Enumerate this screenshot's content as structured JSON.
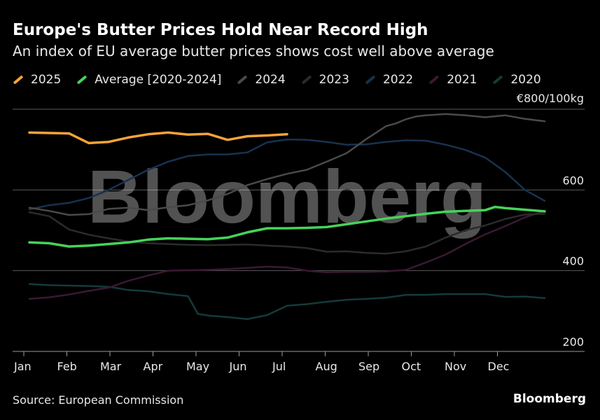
{
  "header": {
    "title": "Europe's Butter Prices Hold Near Record High",
    "subtitle": "An index of EU average butter prices shows cost well above average"
  },
  "legend": [
    {
      "label": "2025",
      "color": "#f7a33a"
    },
    {
      "label": "Average [2020-2024]",
      "color": "#46d35a"
    },
    {
      "label": "2024",
      "color": "#4a4a4a"
    },
    {
      "label": "2023",
      "color": "#2b2b2b"
    },
    {
      "label": "2022",
      "color": "#17324f"
    },
    {
      "label": "2021",
      "color": "#3a1933"
    },
    {
      "label": "2020",
      "color": "#153a3a"
    }
  ],
  "footer": {
    "source": "Source: European Commission",
    "brand": "Bloomberg"
  },
  "watermark": "Bloomberg",
  "chart_data": {
    "type": "line",
    "unit_label": "€800/100kg",
    "x_tick_labels": [
      "Jan",
      "Feb",
      "Mar",
      "Apr",
      "May",
      "Jun",
      "Jul",
      "Aug",
      "Sep",
      "Oct",
      "Nov",
      "Dec"
    ],
    "y_tick_labels": [
      "€800/100kg",
      "600",
      "400",
      "200"
    ],
    "y_ticks": [
      800,
      600,
      400,
      200
    ],
    "ylim": [
      200,
      800
    ],
    "xlim": [
      1,
      53
    ],
    "x_unit": "week",
    "grid": true,
    "legend_position": "top",
    "series": [
      {
        "name": "2020",
        "color": "#153a3a",
        "width": 2.5,
        "x": [
          1,
          3,
          5,
          7,
          9,
          11,
          13,
          15,
          17,
          18,
          19,
          21,
          23,
          25,
          27,
          29,
          31,
          33,
          35,
          37,
          39,
          41,
          43,
          45,
          47,
          49,
          51,
          53
        ],
        "y": [
          367,
          364,
          363,
          362,
          360,
          352,
          349,
          342,
          337,
          293,
          289,
          285,
          280,
          290,
          313,
          317,
          323,
          328,
          330,
          333,
          340,
          340,
          342,
          342,
          342,
          335,
          336,
          332
        ]
      },
      {
        "name": "2021",
        "color": "#3a1933",
        "width": 2.5,
        "x": [
          1,
          3,
          5,
          7,
          9,
          11,
          13,
          15,
          17,
          19,
          21,
          23,
          25,
          27,
          29,
          31,
          33,
          35,
          37,
          39,
          41,
          43,
          45,
          47,
          49,
          51,
          53
        ],
        "y": [
          330,
          334,
          341,
          350,
          358,
          375,
          388,
          400,
          401,
          402,
          404,
          407,
          410,
          408,
          400,
          396,
          397,
          397,
          398,
          402,
          420,
          440,
          466,
          490,
          510,
          532,
          548
        ]
      },
      {
        "name": "2022",
        "color": "#17324f",
        "width": 2.5,
        "x": [
          1,
          3,
          5,
          7,
          9,
          11,
          13,
          15,
          17,
          19,
          21,
          23,
          25,
          27,
          29,
          31,
          33,
          35,
          37,
          39,
          41,
          43,
          45,
          47,
          49,
          51,
          53
        ],
        "y": [
          552,
          562,
          568,
          580,
          600,
          625,
          650,
          670,
          684,
          688,
          688,
          693,
          718,
          725,
          724,
          719,
          712,
          713,
          719,
          723,
          722,
          712,
          699,
          680,
          645,
          600,
          573
        ]
      },
      {
        "name": "2023",
        "color": "#2b2b2b",
        "width": 2.5,
        "x": [
          1,
          3,
          5,
          7,
          9,
          11,
          13,
          15,
          17,
          19,
          21,
          23,
          25,
          27,
          29,
          31,
          33,
          35,
          37,
          39,
          41,
          43,
          45,
          47,
          49,
          51,
          53
        ],
        "y": [
          545,
          535,
          502,
          489,
          480,
          472,
          468,
          466,
          464,
          463,
          464,
          465,
          462,
          460,
          456,
          447,
          448,
          444,
          442,
          448,
          460,
          482,
          500,
          512,
          528,
          539,
          541
        ]
      },
      {
        "name": "2024",
        "color": "#4a4a4a",
        "width": 2.5,
        "x": [
          1,
          3,
          5,
          7,
          9,
          11,
          13,
          15,
          17,
          19,
          21,
          23,
          25,
          27,
          29,
          31,
          33,
          35,
          37,
          38,
          39,
          40,
          41,
          43,
          45,
          47,
          49,
          51,
          53
        ],
        "y": [
          556,
          548,
          538,
          540,
          553,
          556,
          550,
          557,
          562,
          574,
          590,
          612,
          627,
          640,
          650,
          670,
          691,
          726,
          758,
          765,
          775,
          782,
          785,
          788,
          785,
          780,
          785,
          776,
          770
        ]
      },
      {
        "name": "Average [2020-2024]",
        "color": "#46d35a",
        "width": 3.5,
        "x": [
          1,
          3,
          5,
          7,
          9,
          11,
          13,
          15,
          17,
          19,
          21,
          23,
          25,
          27,
          29,
          31,
          33,
          35,
          37,
          39,
          41,
          43,
          45,
          47,
          48,
          49,
          51,
          53
        ],
        "y": [
          470,
          468,
          460,
          462,
          466,
          470,
          477,
          480,
          479,
          478,
          482,
          495,
          505,
          505,
          506,
          508,
          515,
          522,
          529,
          535,
          541,
          546,
          548,
          550,
          558,
          555,
          551,
          547
        ]
      },
      {
        "name": "2025",
        "color": "#f7a33a",
        "width": 3.5,
        "x": [
          1,
          3,
          5,
          7,
          9,
          11,
          13,
          15,
          17,
          19,
          21,
          23,
          25,
          27
        ],
        "y": [
          742,
          741,
          740,
          716,
          719,
          730,
          738,
          742,
          737,
          739,
          724,
          733,
          735,
          738
        ]
      }
    ]
  }
}
